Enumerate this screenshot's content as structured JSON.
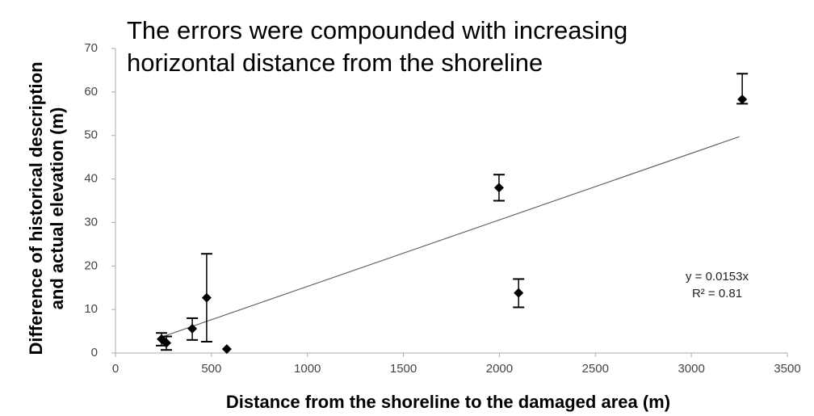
{
  "chart_data": {
    "type": "scatter",
    "title": [
      "The errors were compounded with increasing",
      "horizontal distance from the shoreline"
    ],
    "x_label": "Distance from the shoreline to the damaged area (m)",
    "y_label": [
      "Difference of historical description",
      "and actual elevation (m)"
    ],
    "x": [
      240,
      265,
      400,
      475,
      580,
      1998,
      2100,
      3265
    ],
    "values": [
      3.2,
      2.3,
      5.6,
      12.7,
      0.9,
      38,
      13.8,
      58.3
    ],
    "err_minus": [
      1.5,
      1.6,
      2.6,
      10.1,
      0,
      3,
      3.3,
      1
    ],
    "err_plus": [
      1.4,
      1.5,
      2.4,
      10.1,
      0,
      3,
      3.2,
      5.9
    ],
    "color": "#000000",
    "trendline": {
      "slope": 0.0153,
      "x": [
        250,
        3250
      ],
      "equation": "y = 0.0153x",
      "r2": "R² = 0.81"
    },
    "xlim": [
      0,
      3500
    ],
    "xticks": [
      0,
      500,
      1000,
      1500,
      2000,
      2500,
      3000,
      3500
    ],
    "ylim": [
      0,
      70
    ],
    "yticks": [
      0,
      10,
      20,
      30,
      40,
      50,
      60,
      70
    ]
  }
}
